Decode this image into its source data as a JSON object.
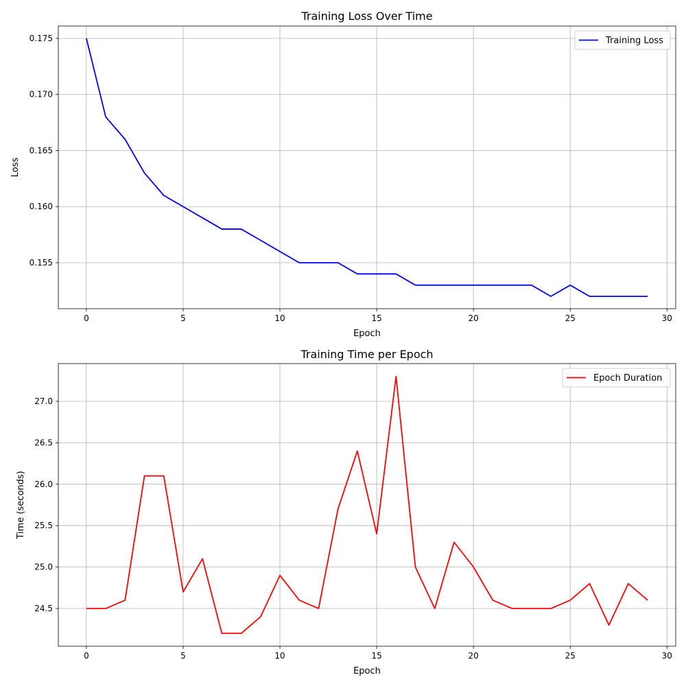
{
  "chart_data": [
    {
      "type": "line",
      "title": "Training Loss Over Time",
      "xlabel": "Epoch",
      "ylabel": "Loss",
      "xlim": [
        -1.45,
        30.45
      ],
      "ylim": [
        0.1509,
        0.1761
      ],
      "xticks": [
        0,
        5,
        10,
        15,
        20,
        25,
        30
      ],
      "yticks": [
        0.155,
        0.16,
        0.165,
        0.17,
        0.175
      ],
      "ytick_labels": [
        "0.155",
        "0.160",
        "0.165",
        "0.170",
        "0.175"
      ],
      "grid": true,
      "legend_position": "top-right",
      "x": [
        0,
        1,
        2,
        3,
        4,
        5,
        6,
        7,
        8,
        9,
        10,
        11,
        12,
        13,
        14,
        15,
        16,
        17,
        18,
        19,
        20,
        21,
        22,
        23,
        24,
        25,
        26,
        27,
        28,
        29
      ],
      "series": [
        {
          "name": "Training Loss",
          "color": "#0000ff",
          "values": [
            0.175,
            0.168,
            0.166,
            0.163,
            0.161,
            0.16,
            0.159,
            0.158,
            0.158,
            0.157,
            0.156,
            0.155,
            0.155,
            0.155,
            0.154,
            0.154,
            0.154,
            0.153,
            0.153,
            0.153,
            0.153,
            0.153,
            0.153,
            0.153,
            0.152,
            0.153,
            0.152,
            0.152,
            0.152,
            0.152
          ]
        }
      ]
    },
    {
      "type": "line",
      "title": "Training Time per Epoch",
      "xlabel": "Epoch",
      "ylabel": "Time (seconds)",
      "xlim": [
        -1.45,
        30.45
      ],
      "ylim": [
        24.045,
        27.455
      ],
      "xticks": [
        0,
        5,
        10,
        15,
        20,
        25,
        30
      ],
      "yticks": [
        24.5,
        25.0,
        25.5,
        26.0,
        26.5,
        27.0
      ],
      "ytick_labels": [
        "24.5",
        "25.0",
        "25.5",
        "26.0",
        "26.5",
        "27.0"
      ],
      "grid": true,
      "legend_position": "top-right",
      "x": [
        0,
        1,
        2,
        3,
        4,
        5,
        6,
        7,
        8,
        9,
        10,
        11,
        12,
        13,
        14,
        15,
        16,
        17,
        18,
        19,
        20,
        21,
        22,
        23,
        24,
        25,
        26,
        27,
        28,
        29
      ],
      "series": [
        {
          "name": "Epoch Duration",
          "color": "#ff0000",
          "values": [
            24.5,
            24.5,
            24.6,
            26.1,
            26.1,
            24.7,
            25.1,
            24.2,
            24.2,
            24.4,
            24.9,
            24.6,
            24.5,
            25.7,
            26.4,
            25.4,
            27.3,
            25.0,
            24.5,
            25.3,
            25.0,
            24.6,
            24.5,
            24.5,
            24.5,
            24.6,
            24.8,
            24.3,
            24.8,
            24.6
          ]
        }
      ]
    }
  ]
}
